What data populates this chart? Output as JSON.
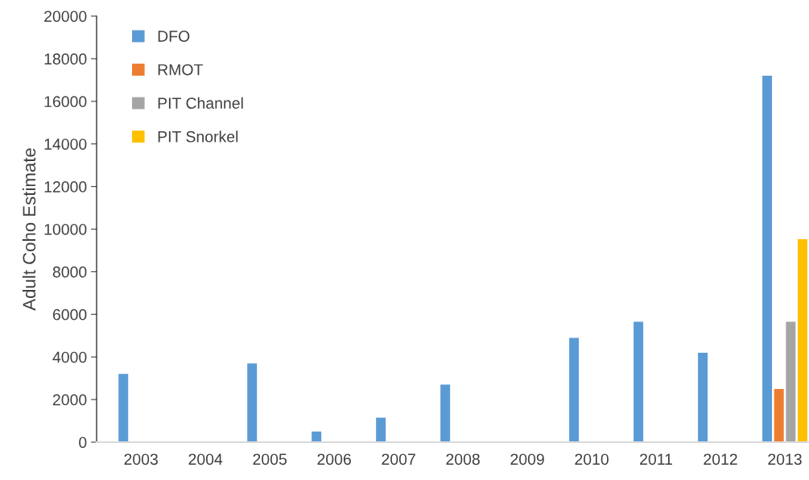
{
  "chart_data": {
    "type": "bar",
    "ylabel": "Adult Coho Estimate",
    "categories": [
      "2003",
      "2004",
      "2005",
      "2006",
      "2007",
      "2008",
      "2009",
      "2010",
      "2011",
      "2012",
      "2013"
    ],
    "series": [
      {
        "name": "DFO",
        "color": "#5b9bd5",
        "values": [
          3200,
          null,
          3700,
          500,
          1150,
          2700,
          null,
          4900,
          5650,
          4200,
          17200
        ]
      },
      {
        "name": "RMOT",
        "color": "#ed7d31",
        "values": [
          null,
          null,
          null,
          null,
          null,
          null,
          null,
          null,
          null,
          null,
          2500
        ]
      },
      {
        "name": "PIT Channel",
        "color": "#a5a5a5",
        "values": [
          null,
          null,
          null,
          null,
          null,
          null,
          null,
          null,
          null,
          null,
          5650
        ]
      },
      {
        "name": "PIT Snorkel",
        "color": "#ffc000",
        "values": [
          null,
          null,
          null,
          null,
          null,
          null,
          null,
          null,
          null,
          null,
          9530
        ]
      }
    ],
    "ylim": [
      0,
      20000
    ],
    "yticks": [
      0,
      2000,
      4000,
      6000,
      8000,
      10000,
      12000,
      14000,
      16000,
      18000,
      20000
    ],
    "grid": false,
    "legend": "top left"
  }
}
